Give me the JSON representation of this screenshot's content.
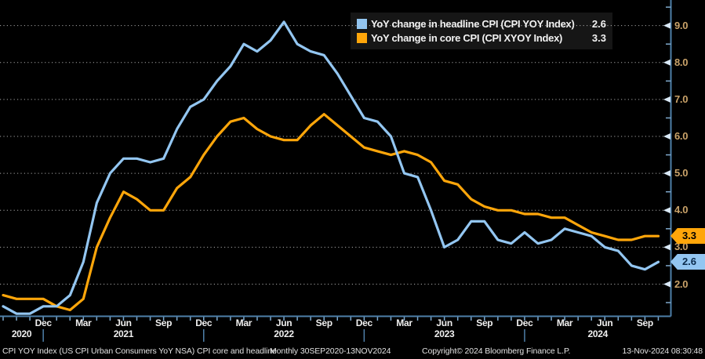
{
  "legend": {
    "items": [
      {
        "label": "YoY change in headline CPI (CPI YOY Index)",
        "value": "2.6",
        "color": "#93C6F1"
      },
      {
        "label": "YoY change in core CPI (CPI XYOY Index)",
        "value": "3.3",
        "color": "#FFA60A"
      }
    ]
  },
  "badges": {
    "core": {
      "value": "3.3",
      "bg": "#FFA60A",
      "text_color": "#000000"
    },
    "headline": {
      "value": "2.6",
      "bg": "#93C6F1",
      "text_color": "#0a2a4a"
    }
  },
  "y_axis": {
    "tick_labels": [
      "9.0",
      "8.0",
      "7.0",
      "6.0",
      "5.0",
      "4.0",
      "3.0",
      "2.0"
    ],
    "label_color": "#c9a269"
  },
  "x_axis": {
    "quarter_labels": [
      "Dec",
      "Mar",
      "Jun",
      "Sep",
      "Dec",
      "Mar",
      "Jun",
      "Sep",
      "Dec",
      "Mar",
      "Jun",
      "Sep",
      "Dec",
      "Mar",
      "Jun",
      "Sep"
    ],
    "first_label_month_index": 3,
    "label_step": 3,
    "years": [
      "2020",
      "2021",
      "2022",
      "2023",
      "2024"
    ],
    "year_separator_month_indices": [
      3,
      15,
      27,
      39
    ]
  },
  "footer": {
    "description": "CPI YOY Index (US CPI Urban Consumers YoY NSA) CPI core and headline",
    "period": "Monthly 30SEP2020-13NOV2024",
    "copyright": "Copyright© 2024 Bloomberg Finance L.P.",
    "timestamp": "13-Nov-2024 08:30:48"
  },
  "colors": {
    "background": "#000000",
    "axis": "#4e7fa9",
    "tick": "#7fa9cc",
    "tick_arrow": "#d9e9f7",
    "grid": "#c4c4c4",
    "legend_bg": "#161616"
  },
  "chart_data": {
    "type": "line",
    "title": "",
    "xlabel": "",
    "ylabel": "",
    "ylim": [
      1.0,
      9.6
    ],
    "y_ticks": [
      2.0,
      3.0,
      4.0,
      5.0,
      6.0,
      7.0,
      8.0,
      9.0
    ],
    "grid": "horizontal-dotted",
    "legend_position": "top-right-inside",
    "x": [
      "Sep 2020",
      "Oct 2020",
      "Nov 2020",
      "Dec 2020",
      "Jan 2021",
      "Feb 2021",
      "Mar 2021",
      "Apr 2021",
      "May 2021",
      "Jun 2021",
      "Jul 2021",
      "Aug 2021",
      "Sep 2021",
      "Oct 2021",
      "Nov 2021",
      "Dec 2021",
      "Jan 2022",
      "Feb 2022",
      "Mar 2022",
      "Apr 2022",
      "May 2022",
      "Jun 2022",
      "Jul 2022",
      "Aug 2022",
      "Sep 2022",
      "Oct 2022",
      "Nov 2022",
      "Dec 2022",
      "Jan 2023",
      "Feb 2023",
      "Mar 2023",
      "Apr 2023",
      "May 2023",
      "Jun 2023",
      "Jul 2023",
      "Aug 2023",
      "Sep 2023",
      "Oct 2023",
      "Nov 2023",
      "Dec 2023",
      "Jan 2024",
      "Feb 2024",
      "Mar 2024",
      "Apr 2024",
      "May 2024",
      "Jun 2024",
      "Jul 2024",
      "Aug 2024",
      "Sep 2024",
      "Oct 2024"
    ],
    "series": [
      {
        "name": "YoY change in core CPI (CPI XYOY Index)",
        "color": "#FFA60A",
        "last_value": 3.3,
        "values": [
          1.7,
          1.6,
          1.6,
          1.6,
          1.4,
          1.3,
          1.6,
          3.0,
          3.8,
          4.5,
          4.3,
          4.0,
          4.0,
          4.6,
          4.9,
          5.5,
          6.0,
          6.4,
          6.5,
          6.2,
          6.0,
          5.9,
          5.9,
          6.3,
          6.6,
          6.3,
          6.0,
          5.7,
          5.6,
          5.5,
          5.6,
          5.5,
          5.3,
          4.8,
          4.7,
          4.3,
          4.1,
          4.0,
          4.0,
          3.9,
          3.9,
          3.8,
          3.8,
          3.6,
          3.4,
          3.3,
          3.2,
          3.2,
          3.3,
          3.3
        ]
      },
      {
        "name": "YoY change in headline CPI (CPI YOY Index)",
        "color": "#93C6F1",
        "last_value": 2.6,
        "values": [
          1.4,
          1.2,
          1.2,
          1.4,
          1.4,
          1.7,
          2.6,
          4.2,
          5.0,
          5.4,
          5.4,
          5.3,
          5.4,
          6.2,
          6.8,
          7.0,
          7.5,
          7.9,
          8.5,
          8.3,
          8.6,
          9.1,
          8.5,
          8.3,
          8.2,
          7.7,
          7.1,
          6.5,
          6.4,
          6.0,
          5.0,
          4.9,
          4.0,
          3.0,
          3.2,
          3.7,
          3.7,
          3.2,
          3.1,
          3.4,
          3.1,
          3.2,
          3.5,
          3.4,
          3.3,
          3.0,
          2.9,
          2.5,
          2.4,
          2.6
        ]
      }
    ]
  }
}
